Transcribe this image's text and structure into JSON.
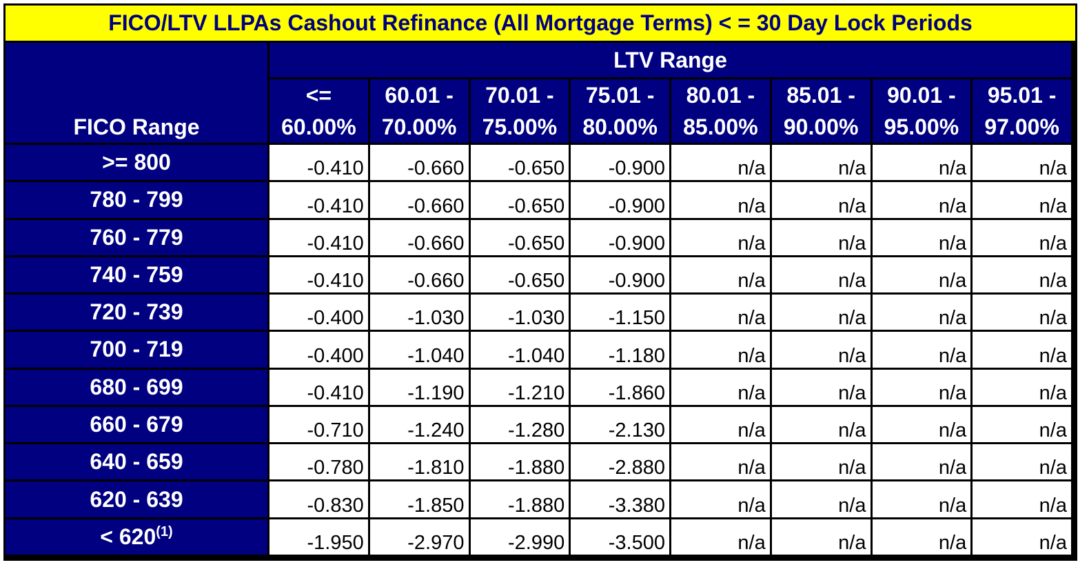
{
  "title": "FICO/LTV LLPAs Cashout Refinance (All Mortgage Terms) < = 30 Day Lock Periods",
  "header": {
    "fico_range_label": "FICO Range",
    "ltv_range_label": "LTV Range",
    "columns": [
      {
        "line1": "<=",
        "line2": "60.00%"
      },
      {
        "line1": "60.01 -",
        "line2": "70.00%"
      },
      {
        "line1": "70.01 -",
        "line2": "75.00%"
      },
      {
        "line1": "75.01 -",
        "line2": "80.00%"
      },
      {
        "line1": "80.01 -",
        "line2": "85.00%"
      },
      {
        "line1": "85.01 -",
        "line2": "90.00%"
      },
      {
        "line1": "90.01 -",
        "line2": "95.00%"
      },
      {
        "line1": "95.01 -",
        "line2": "97.00%"
      }
    ]
  },
  "rows": [
    {
      "fico": ">= 800",
      "sup": "",
      "values": [
        "-0.410",
        "-0.660",
        "-0.650",
        "-0.900",
        "n/a",
        "n/a",
        "n/a",
        "n/a"
      ]
    },
    {
      "fico": "780 - 799",
      "sup": "",
      "values": [
        "-0.410",
        "-0.660",
        "-0.650",
        "-0.900",
        "n/a",
        "n/a",
        "n/a",
        "n/a"
      ]
    },
    {
      "fico": "760 - 779",
      "sup": "",
      "values": [
        "-0.410",
        "-0.660",
        "-0.650",
        "-0.900",
        "n/a",
        "n/a",
        "n/a",
        "n/a"
      ]
    },
    {
      "fico": "740 - 759",
      "sup": "",
      "values": [
        "-0.410",
        "-0.660",
        "-0.650",
        "-0.900",
        "n/a",
        "n/a",
        "n/a",
        "n/a"
      ]
    },
    {
      "fico": "720 - 739",
      "sup": "",
      "values": [
        "-0.400",
        "-1.030",
        "-1.030",
        "-1.150",
        "n/a",
        "n/a",
        "n/a",
        "n/a"
      ]
    },
    {
      "fico": "700 - 719",
      "sup": "",
      "values": [
        "-0.400",
        "-1.040",
        "-1.040",
        "-1.180",
        "n/a",
        "n/a",
        "n/a",
        "n/a"
      ]
    },
    {
      "fico": "680 - 699",
      "sup": "",
      "values": [
        "-0.410",
        "-1.190",
        "-1.210",
        "-1.860",
        "n/a",
        "n/a",
        "n/a",
        "n/a"
      ]
    },
    {
      "fico": "660 - 679",
      "sup": "",
      "values": [
        "-0.710",
        "-1.240",
        "-1.280",
        "-2.130",
        "n/a",
        "n/a",
        "n/a",
        "n/a"
      ]
    },
    {
      "fico": "640 - 659",
      "sup": "",
      "values": [
        "-0.780",
        "-1.810",
        "-1.880",
        "-2.880",
        "n/a",
        "n/a",
        "n/a",
        "n/a"
      ]
    },
    {
      "fico": "620 - 639",
      "sup": "",
      "values": [
        "-0.830",
        "-1.850",
        "-1.880",
        "-3.380",
        "n/a",
        "n/a",
        "n/a",
        "n/a"
      ]
    },
    {
      "fico": "< 620",
      "sup": "(1)",
      "values": [
        "-1.950",
        "-2.970",
        "-2.990",
        "-3.500",
        "n/a",
        "n/a",
        "n/a",
        "n/a"
      ]
    }
  ]
}
